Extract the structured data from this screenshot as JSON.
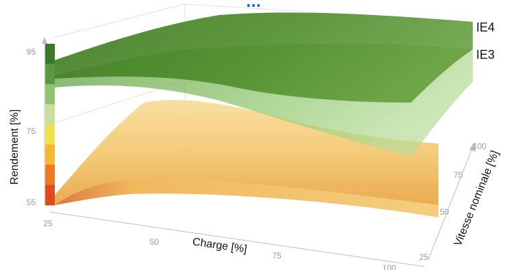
{
  "chart_data": {
    "type": "area",
    "title_fragment": "...",
    "xlabel": "Charge [%]",
    "ylabel": "Rendement [%]",
    "zlabel": "Vitesse nominale [%]",
    "x_ticks": [
      "25",
      "50",
      "75",
      "100"
    ],
    "y_ticks": [
      "55",
      "75",
      "95"
    ],
    "z_ticks": [
      "25",
      "50",
      "75",
      "100"
    ],
    "xlim": [
      25,
      100
    ],
    "ylim": [
      55,
      95
    ],
    "zlim": [
      25,
      100
    ],
    "series": [
      {
        "name": "IE4",
        "color": "#4f8a2c"
      },
      {
        "name": "IE3",
        "color": "#7fbf5a"
      }
    ],
    "lower_surface_color": "#f2c56b",
    "efficiency_scale_colors": [
      "#3d7a26",
      "#5b9a3c",
      "#8ec46d",
      "#c9de9f",
      "#f0e04a",
      "#f4b92f",
      "#ee7a26",
      "#e04a1c"
    ]
  }
}
